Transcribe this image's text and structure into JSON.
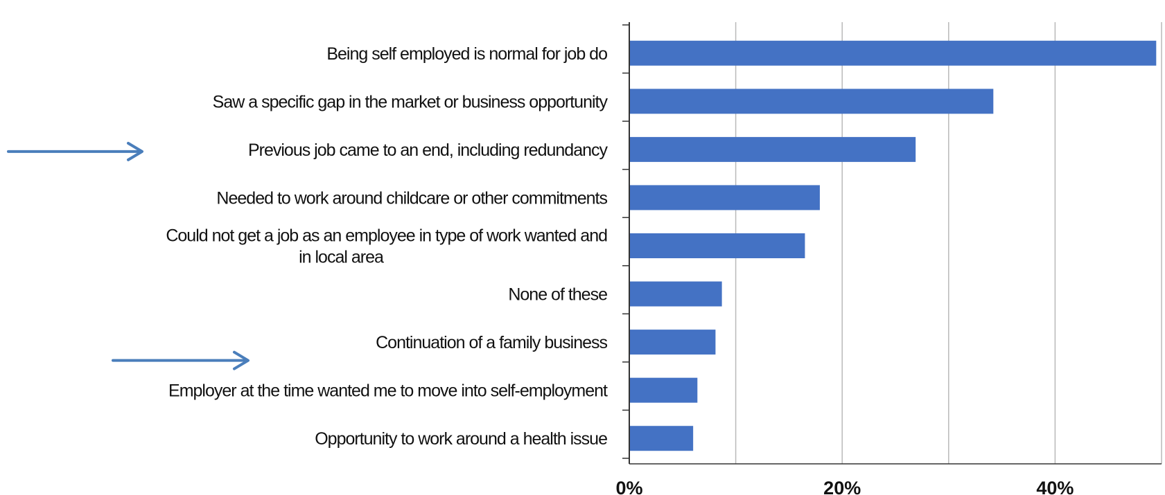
{
  "chart_data": {
    "type": "bar",
    "orientation": "horizontal",
    "categories": [
      [
        "Being self employed is normal for job do"
      ],
      [
        "Saw a specific gap in the market or business opportunity"
      ],
      [
        "Previous job came to an end, including redundancy"
      ],
      [
        "Needed to work around childcare or other commitments"
      ],
      [
        "Could not get a job as an employee in type of work wanted and",
        "in local area"
      ],
      [
        "None of these"
      ],
      [
        "Continuation of a family business"
      ],
      [
        "Employer at the time wanted me to move into self-employment"
      ],
      [
        "Opportunity to work around a health issue"
      ]
    ],
    "values": [
      49.5,
      34.2,
      26.9,
      17.9,
      16.5,
      8.7,
      8.1,
      6.4,
      6.0
    ],
    "xlim": [
      0,
      50
    ],
    "x_ticks": [
      0,
      20,
      40
    ],
    "x_tick_labels": [
      "0%",
      "20%",
      "40%"
    ],
    "gridlines": [
      10,
      20,
      30,
      40,
      50
    ],
    "grid": true,
    "bar_color": "#4472C4",
    "annotations": {
      "arrows": [
        {
          "points_to_category_index": 2,
          "color": "#4A7EBB"
        },
        {
          "points_to_category_index": 7,
          "color": "#4A7EBB"
        }
      ]
    }
  }
}
